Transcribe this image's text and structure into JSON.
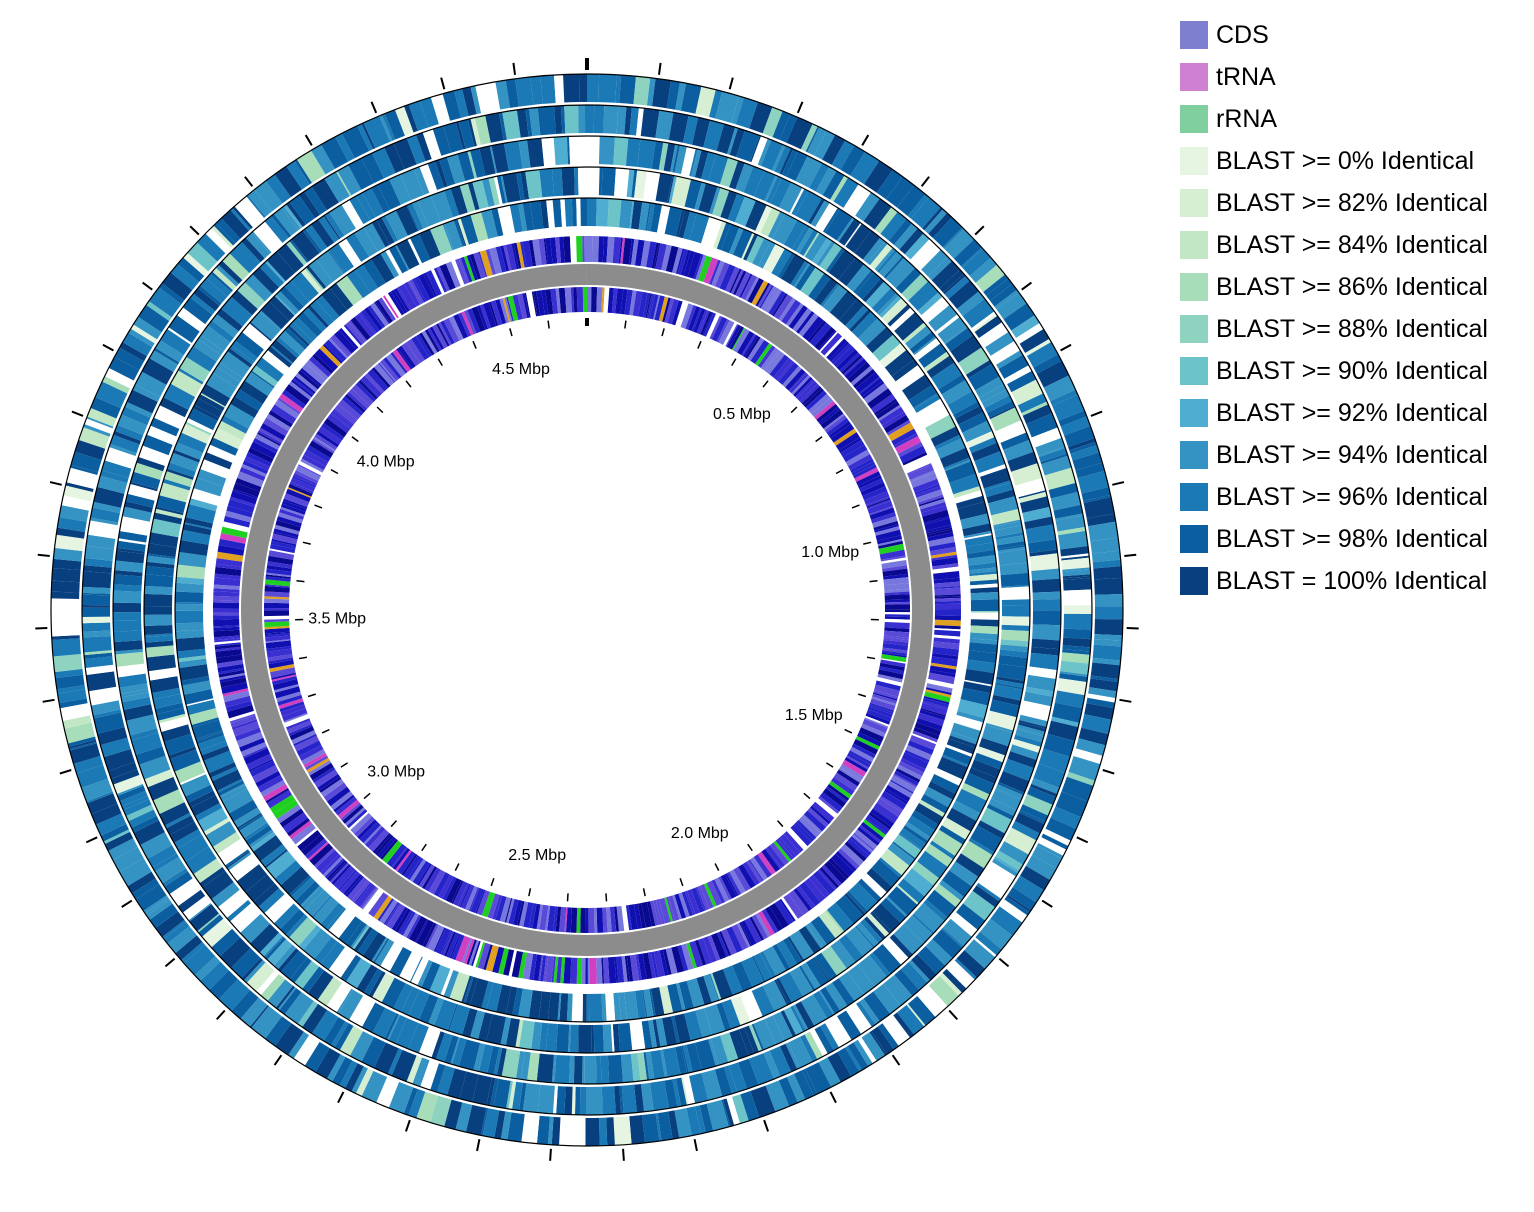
{
  "legend": [
    {
      "label": "CDS",
      "color": "#7f7fd0"
    },
    {
      "label": "tRNA",
      "color": "#d080d0"
    },
    {
      "label": "rRNA",
      "color": "#7fcf9f"
    },
    {
      "label": "BLAST >= 0% Identical",
      "color": "#e6f5e1"
    },
    {
      "label": "BLAST >= 82% Identical",
      "color": "#d6efd3"
    },
    {
      "label": "BLAST >= 84% Identical",
      "color": "#c2e7c4"
    },
    {
      "label": "BLAST >= 86% Identical",
      "color": "#a8ddba"
    },
    {
      "label": "BLAST >= 88% Identical",
      "color": "#8dd3c0"
    },
    {
      "label": "BLAST >= 90% Identical",
      "color": "#6cc3c8"
    },
    {
      "label": "BLAST >= 92% Identical",
      "color": "#4eadd0"
    },
    {
      "label": "BLAST >= 94% Identical",
      "color": "#3493c3"
    },
    {
      "label": "BLAST >= 96% Identical",
      "color": "#1b79b5"
    },
    {
      "label": "BLAST >= 98% Identical",
      "color": "#0b5fa0"
    },
    {
      "label": "BLAST = 100% Identical",
      "color": "#08407f"
    }
  ],
  "genome": {
    "length_mbp": 4.7,
    "tick_labels": [
      {
        "label": "0.5 Mbp",
        "position_mbp": 0.5
      },
      {
        "label": "1.0 Mbp",
        "position_mbp": 1.0
      },
      {
        "label": "1.5 Mbp",
        "position_mbp": 1.5
      },
      {
        "label": "2.0 Mbp",
        "position_mbp": 2.0
      },
      {
        "label": "2.5 Mbp",
        "position_mbp": 2.5
      },
      {
        "label": "3.0 Mbp",
        "position_mbp": 3.0
      },
      {
        "label": "3.5 Mbp",
        "position_mbp": 3.5
      },
      {
        "label": "4.0 Mbp",
        "position_mbp": 4.0
      },
      {
        "label": "4.5 Mbp",
        "position_mbp": 4.5
      }
    ]
  },
  "tracks": {
    "blast_ring_count": 5,
    "backbone_color": "#8c8c8c",
    "cds_forward_color": "#1a1ab8",
    "cds_reverse_color": "#2020c0"
  }
}
